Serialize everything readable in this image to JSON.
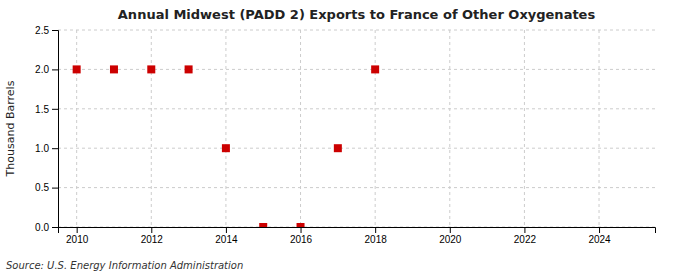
{
  "chart_data": {
    "type": "scatter",
    "title": "Annual Midwest (PADD 2) Exports to France of Other Oxygenates",
    "y_label": "Thousand Barrels",
    "source": "Source: U.S. Energy Information Administration",
    "x": [
      2010,
      2011,
      2012,
      2013,
      2014,
      2015,
      2016,
      2017,
      2018
    ],
    "values": [
      2.0,
      2.0,
      2.0,
      2.0,
      1.0,
      0.0,
      0.0,
      1.0,
      2.0
    ],
    "color": "#cc0000",
    "marker": "square",
    "xlim": [
      2009.5,
      2025.5
    ],
    "ylim": [
      0.0,
      2.5
    ],
    "xticks": [
      2010,
      2012,
      2014,
      2016,
      2018,
      2020,
      2022,
      2024
    ],
    "yticks": [
      {
        "value": 0.0,
        "label": "0.0"
      },
      0.5,
      {
        "value": 1.0,
        "label": "1.0"
      },
      1.5,
      {
        "value": 2.0,
        "label": "2.0"
      },
      2.5
    ],
    "grid": true
  }
}
